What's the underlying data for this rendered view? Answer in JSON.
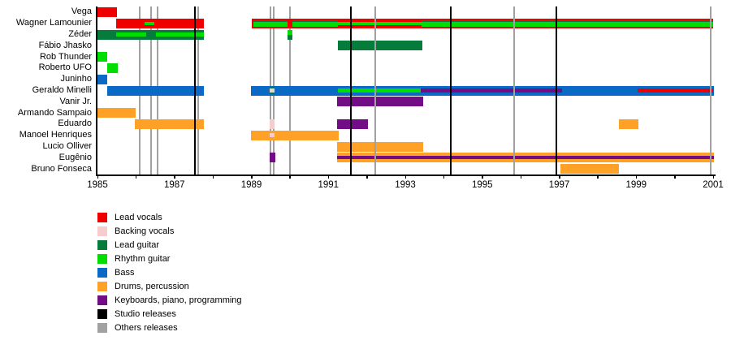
{
  "chart_data": {
    "type": "timeline",
    "description": "Band members timeline (Gantt-style) with roles as colored bars and release lines",
    "x_axis": {
      "min": 1985,
      "max": 2001,
      "tick_step": 1,
      "label_step": 2,
      "tick_labels": [
        "1985",
        "1987",
        "1989",
        "1991",
        "1993",
        "1995",
        "1997",
        "1999",
        "2001"
      ]
    },
    "colors": {
      "red": "#ee0000",
      "pink": "#f6cccf",
      "dgreen": "#057c3b",
      "green": "#00dd00",
      "blue": "#0b6ac6",
      "orange": "#ffa126",
      "purple": "#730d86",
      "black": "#000000",
      "gray": "#a1a1a1"
    },
    "legend": [
      {
        "label": "Lead vocals",
        "color": "red"
      },
      {
        "label": "Backing vocals",
        "color": "pink"
      },
      {
        "label": "Lead guitar",
        "color": "dgreen"
      },
      {
        "label": "Rhythm guitar",
        "color": "green"
      },
      {
        "label": "Bass",
        "color": "blue"
      },
      {
        "label": "Drums, percussion",
        "color": "orange"
      },
      {
        "label": "Keyboards, piano, programming",
        "color": "purple"
      },
      {
        "label": "Studio releases",
        "color": "black"
      },
      {
        "label": "Others releases",
        "color": "gray"
      }
    ],
    "members": [
      {
        "name": "Vega",
        "rects": [
          {
            "s": 1985.0,
            "e": 1985.5,
            "c": "red",
            "v": [
              0,
              1
            ]
          }
        ]
      },
      {
        "name": "Wagner Lamounier",
        "rects": [
          {
            "s": 1985.48,
            "e": 1987.77,
            "c": "red",
            "v": [
              0,
              1
            ]
          },
          {
            "s": 1986.22,
            "e": 1986.47,
            "c": "green",
            "v": [
              0.33,
              0.67
            ]
          },
          {
            "s": 1989.02,
            "e": 2001.0,
            "c": "red",
            "v": [
              0,
              1
            ]
          },
          {
            "s": 1989.06,
            "e": 1989.94,
            "c": "dgreen",
            "v": [
              0.17,
              0.35
            ]
          },
          {
            "s": 1989.06,
            "e": 1989.94,
            "c": "green",
            "v": [
              0.35,
              0.83
            ]
          },
          {
            "s": 1990.07,
            "e": 1991.25,
            "c": "dgreen",
            "v": [
              0.17,
              0.35
            ]
          },
          {
            "s": 1990.07,
            "e": 1991.25,
            "c": "green",
            "v": [
              0.35,
              0.83
            ]
          },
          {
            "s": 1991.25,
            "e": 1993.42,
            "c": "green",
            "v": [
              0.35,
              0.67
            ]
          },
          {
            "s": 1993.42,
            "e": 2001.0,
            "c": "dgreen",
            "v": [
              0.17,
              0.35
            ]
          },
          {
            "s": 1993.42,
            "e": 2001.0,
            "c": "green",
            "v": [
              0.35,
              0.83
            ]
          }
        ]
      },
      {
        "name": "Zéder",
        "rects": [
          {
            "s": 1985.0,
            "e": 1987.77,
            "c": "dgreen",
            "v": [
              0,
              1
            ]
          },
          {
            "s": 1985.48,
            "e": 1986.27,
            "c": "green",
            "v": [
              0.3,
              0.72
            ]
          },
          {
            "s": 1986.52,
            "e": 1987.77,
            "c": "green",
            "v": [
              0.3,
              0.72
            ]
          },
          {
            "s": 1989.94,
            "e": 1990.07,
            "c": "green",
            "v": [
              0,
              0.5
            ]
          },
          {
            "s": 1989.94,
            "e": 1990.07,
            "c": "dgreen",
            "v": [
              0.5,
              1
            ]
          }
        ]
      },
      {
        "name": "Fábio Jhasko",
        "rects": [
          {
            "s": 1991.25,
            "e": 1993.44,
            "c": "dgreen",
            "v": [
              0,
              1
            ]
          }
        ]
      },
      {
        "name": "Rob Thunder",
        "rects": [
          {
            "s": 1985.0,
            "e": 1985.25,
            "c": "green",
            "v": [
              0,
              1
            ]
          }
        ]
      },
      {
        "name": "Roberto UFO",
        "rects": [
          {
            "s": 1985.25,
            "e": 1985.52,
            "c": "green",
            "v": [
              0,
              1
            ]
          }
        ]
      },
      {
        "name": "Juninho",
        "rects": [
          {
            "s": 1985.0,
            "e": 1985.25,
            "c": "blue",
            "v": [
              0,
              1
            ]
          }
        ]
      },
      {
        "name": "Geraldo Minelli",
        "rects": [
          {
            "s": 1985.25,
            "e": 1987.77,
            "c": "blue",
            "v": [
              0,
              1
            ]
          },
          {
            "s": 1988.99,
            "e": 2001.02,
            "c": "blue",
            "v": [
              0,
              1
            ]
          },
          {
            "s": 1989.47,
            "e": 1989.6,
            "c": "dgreen",
            "v": [
              0.12,
              0.3
            ]
          },
          {
            "s": 1989.47,
            "e": 1989.6,
            "c": "pink",
            "v": [
              0.3,
              0.72
            ]
          },
          {
            "s": 1989.47,
            "e": 1989.6,
            "c": "dgreen",
            "v": [
              0.72,
              0.9
            ]
          },
          {
            "s": 1991.25,
            "e": 1993.4,
            "c": "green",
            "v": [
              0.33,
              0.72
            ]
          },
          {
            "s": 1993.4,
            "e": 1997.07,
            "c": "purple",
            "v": [
              0.33,
              0.72
            ]
          },
          {
            "s": 1999.03,
            "e": 2001.0,
            "c": "red",
            "v": [
              0.33,
              0.72
            ]
          }
        ]
      },
      {
        "name": "Vanir Jr.",
        "rects": [
          {
            "s": 1991.23,
            "e": 1993.46,
            "c": "purple",
            "v": [
              0,
              1
            ]
          }
        ]
      },
      {
        "name": "Armando Sampaio",
        "rects": [
          {
            "s": 1985.0,
            "e": 1986.0,
            "c": "orange",
            "v": [
              0,
              1
            ]
          }
        ]
      },
      {
        "name": "Eduardo",
        "rects": [
          {
            "s": 1985.98,
            "e": 1987.77,
            "c": "orange",
            "v": [
              0,
              1
            ]
          },
          {
            "s": 1989.47,
            "e": 1989.6,
            "c": "pink",
            "v": [
              0,
              1
            ]
          },
          {
            "s": 1991.23,
            "e": 1992.03,
            "c": "purple",
            "v": [
              0,
              1
            ]
          },
          {
            "s": 1998.55,
            "e": 1999.05,
            "c": "orange",
            "v": [
              0,
              1
            ]
          }
        ]
      },
      {
        "name": "Manoel Henriques",
        "rects": [
          {
            "s": 1988.99,
            "e": 1991.27,
            "c": "orange",
            "v": [
              0,
              1
            ]
          },
          {
            "s": 1989.47,
            "e": 1989.6,
            "c": "pink",
            "v": [
              0.28,
              0.72
            ]
          }
        ]
      },
      {
        "name": "Lucio Olliver",
        "rects": [
          {
            "s": 1991.23,
            "e": 1993.46,
            "c": "orange",
            "v": [
              0,
              1
            ]
          }
        ]
      },
      {
        "name": "Eugênio",
        "rects": [
          {
            "s": 1989.47,
            "e": 1989.62,
            "c": "purple",
            "v": [
              0,
              1
            ]
          },
          {
            "s": 1991.23,
            "e": 2001.02,
            "c": "orange",
            "v": [
              0,
              1
            ]
          },
          {
            "s": 1991.23,
            "e": 2001.02,
            "c": "purple",
            "v": [
              0.33,
              0.67
            ]
          }
        ]
      },
      {
        "name": "Bruno Fonseca",
        "rects": [
          {
            "s": 1997.03,
            "e": 1998.55,
            "c": "orange",
            "v": [
              0,
              1
            ]
          }
        ]
      }
    ],
    "release_lines": {
      "studio_releases": [
        1987.53,
        1991.59,
        1994.18,
        1996.93
      ],
      "other_releases_behind_bars": [
        1986.1,
        1986.39,
        1986.56,
        1987.62,
        1989.5,
        1989.58,
        1990.0
      ],
      "other_releases_front": [
        1992.22,
        1995.83,
        2000.94
      ]
    }
  }
}
